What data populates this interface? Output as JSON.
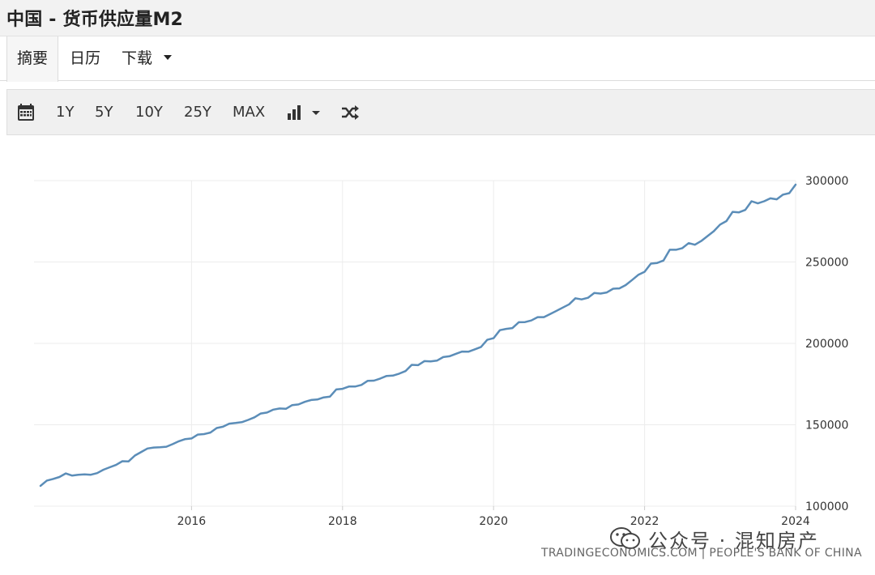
{
  "page": {
    "title": "中国 - 货币供应量M2"
  },
  "tabs": [
    {
      "label": "摘要",
      "active": true
    },
    {
      "label": "日历",
      "active": false
    },
    {
      "label": "下载",
      "active": false
    }
  ],
  "toolbar": {
    "ranges": [
      "1Y",
      "5Y",
      "10Y",
      "25Y",
      "MAX"
    ],
    "icons": [
      "calendar-icon",
      "bar-chart-icon",
      "chevron-down-icon",
      "shuffle-icon"
    ]
  },
  "chart_data": {
    "type": "line",
    "title": "",
    "xlabel": "",
    "ylabel": "",
    "x_ticks": [
      "2016",
      "2018",
      "2020",
      "2022",
      "2024"
    ],
    "y_ticks": [
      "100000",
      "150000",
      "200000",
      "250000",
      "300000"
    ],
    "ylim": [
      100000,
      300000
    ],
    "xlim": [
      "2014-01",
      "2024-01"
    ],
    "grid": true,
    "line_color": "#5b8db8",
    "series": [
      {
        "values": [
          112500,
          115700,
          116700,
          117900,
          120100,
          118800,
          119300,
          119500,
          119300,
          120300,
          122400,
          123900,
          125300,
          127600,
          127500,
          131100,
          133300,
          135400,
          136000,
          136200,
          136500,
          138100,
          139900,
          141200,
          141600,
          144000,
          144300,
          145200,
          148000,
          148800,
          150700,
          151100,
          151600,
          153000,
          154600,
          156900,
          157500,
          159300,
          160000,
          159800,
          162100,
          162500,
          164100,
          165200,
          165500,
          166800,
          167300,
          171700,
          172100,
          173500,
          173500,
          174500,
          177000,
          177100,
          178400,
          180000,
          180200,
          181400,
          183000,
          186800,
          186600,
          189100,
          188900,
          189400,
          191600,
          192100,
          193600,
          195000,
          194900,
          196300,
          197800,
          202200,
          203200,
          208100,
          208900,
          209400,
          213000,
          213100,
          214100,
          216100,
          216100,
          218000,
          220000,
          222000,
          224000,
          227700,
          227000,
          228000,
          231000,
          230600,
          231300,
          233600,
          233800,
          235800,
          238900,
          242100,
          244000,
          249000,
          249400,
          250900,
          257500,
          257500,
          258500,
          261600,
          260600,
          262900,
          265900,
          268900,
          273000,
          275100,
          280800,
          280500,
          282000,
          287300,
          286000,
          287300,
          289100,
          288500,
          291400,
          292300,
          297500
        ]
      }
    ]
  },
  "watermark": {
    "text": "公众号 · 混知房产"
  },
  "source": {
    "text": "TRADINGECONOMICS.COM | PEOPLE'S BANK OF CHINA"
  }
}
